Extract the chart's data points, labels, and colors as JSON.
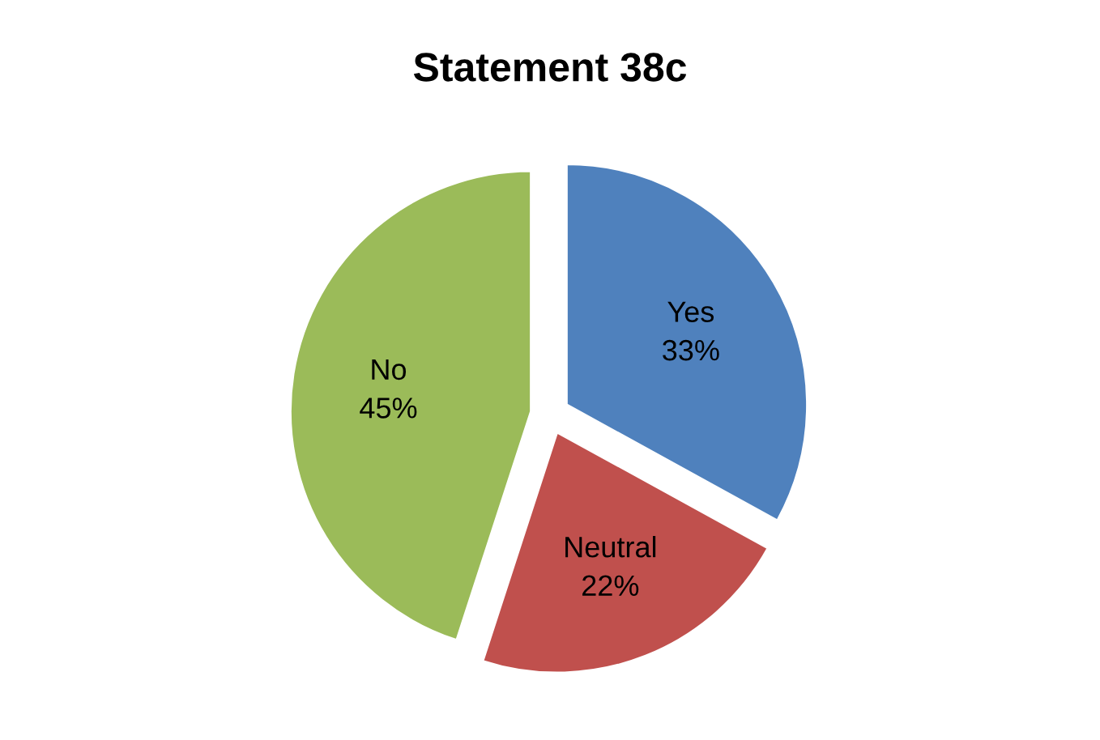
{
  "chart_data": {
    "type": "pie",
    "title": "Statement 38c",
    "categories": [
      "Yes",
      "Neutral",
      "No"
    ],
    "values": [
      33,
      22,
      45
    ],
    "value_labels": [
      "33%",
      "22%",
      "45%"
    ],
    "colors": [
      "#4f81bd",
      "#c0504d",
      "#9bbb59"
    ]
  }
}
